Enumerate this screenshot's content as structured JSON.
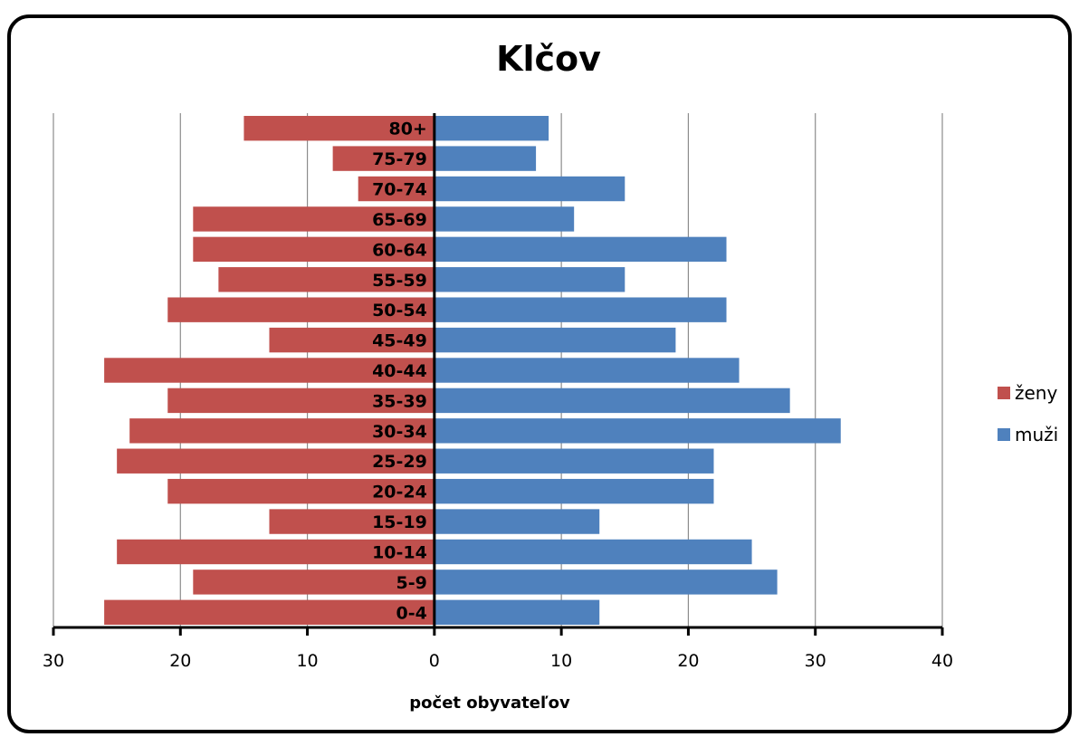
{
  "chart_data": {
    "type": "bar",
    "orientation": "horizontal",
    "title": "Klčov",
    "xlabel": "počet obyvateľov",
    "categories": [
      "0-4",
      "5-9",
      "10-14",
      "15-19",
      "20-24",
      "25-29",
      "30-34",
      "35-39",
      "40-44",
      "45-49",
      "50-54",
      "55-59",
      "60-64",
      "65-69",
      "70-74",
      "75-79",
      "80+"
    ],
    "series": [
      {
        "name": "ženy",
        "color": "#c0504d",
        "values": [
          26,
          19,
          25,
          13,
          21,
          25,
          24,
          21,
          26,
          13,
          21,
          17,
          19,
          19,
          6,
          8,
          15
        ]
      },
      {
        "name": "muži",
        "color": "#4f81bd",
        "values": [
          13,
          27,
          25,
          13,
          22,
          22,
          32,
          28,
          24,
          19,
          23,
          15,
          23,
          11,
          15,
          8,
          9
        ]
      }
    ],
    "xlim": [
      -30,
      40
    ],
    "ticks": [
      -30,
      -20,
      -10,
      0,
      10,
      20,
      30,
      40
    ],
    "tick_labels": [
      "30",
      "20",
      "10",
      "0",
      "10",
      "20",
      "30",
      "40"
    ],
    "grid": true,
    "legend_position": "right"
  }
}
